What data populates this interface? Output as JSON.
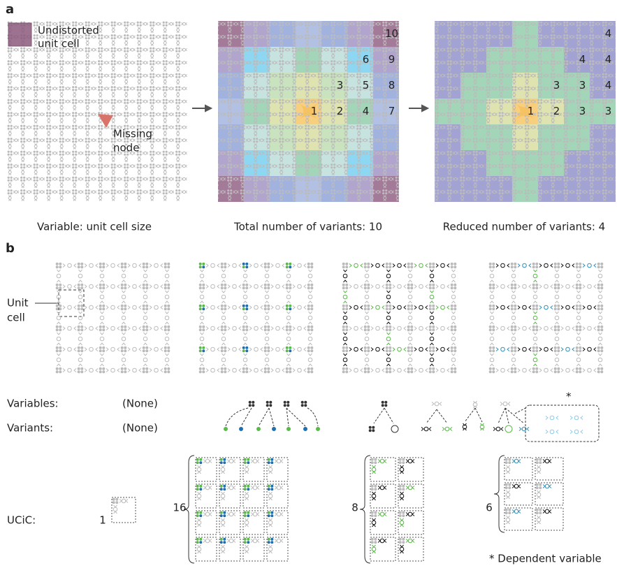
{
  "panel_a": {
    "label": "a",
    "legend": {
      "line1": "Undistorted",
      "line2": "unit cell"
    },
    "annotation": {
      "line1": "Missing",
      "line2": "node"
    },
    "total_labels": [
      "1",
      "2",
      "3",
      "4",
      "5",
      "6",
      "7",
      "8",
      "9",
      "10"
    ],
    "reduced_labels": [
      "1",
      "2",
      "3",
      "3",
      "3",
      "4",
      "3",
      "4",
      "4",
      "4"
    ],
    "captions": [
      "Variable: unit cell size",
      "Total number of variants: 10",
      "Reduced number of variants: 4"
    ]
  },
  "panel_b": {
    "label": "b",
    "unit_cell": {
      "line1": "Unit",
      "line2": "cell"
    },
    "rows": {
      "variables": "Variables:",
      "variants": "Variants:",
      "ucic": "UCiC:"
    },
    "none": [
      "(None)",
      "(None)"
    ],
    "ucic_counts": [
      "1",
      "16",
      "8",
      "6"
    ],
    "asterisk": "*",
    "footnote": "* Dependent variable"
  }
}
